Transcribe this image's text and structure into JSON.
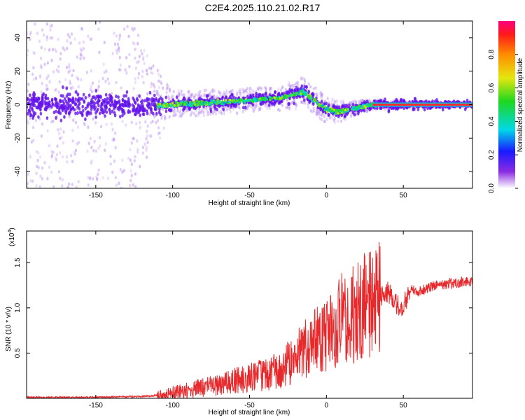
{
  "figure": {
    "title": "C2E4.2025.110.21.02.R17"
  },
  "chart_data": [
    {
      "type": "heatmap",
      "xlabel": "Height of straight line (km)",
      "ylabel": "Frequency (Hz)",
      "xlim": [
        -195,
        95
      ],
      "ylim": [
        -50,
        50
      ],
      "xticks": [
        -150,
        -100,
        -50,
        0,
        50
      ],
      "yticks": [
        -40,
        -20,
        0,
        20,
        40
      ],
      "colorbar": {
        "label": "Normalized spectral amplitude",
        "range": [
          0,
          1
        ],
        "ticks": [
          0.0,
          0.2,
          0.4,
          0.6,
          0.8
        ]
      },
      "ridge_frequency": {
        "x": [
          -195,
          -150,
          -120,
          -100,
          -80,
          -60,
          -45,
          -30,
          -20,
          -16,
          -10,
          0,
          10,
          20,
          30,
          95
        ],
        "y": [
          0,
          0,
          -1,
          0,
          1,
          2,
          3,
          4,
          6,
          8,
          4,
          -3,
          -4,
          -2,
          0,
          0
        ]
      },
      "scatter_spread_hz": {
        "x": [
          -195,
          -125,
          -115,
          -100,
          -40,
          -20,
          0,
          30,
          95
        ],
        "y": [
          50,
          50,
          30,
          8,
          7,
          9,
          8,
          3,
          1
        ]
      }
    },
    {
      "type": "line",
      "xlabel": "Height of straight line (km)",
      "ylabel": "SNR (10 * v/v)",
      "y_multiplier": "(x10",
      "y_multiplier_exp": "4",
      "xlim": [
        -195,
        95
      ],
      "ylim": [
        0,
        1.85
      ],
      "xticks": [
        -150,
        -100,
        -50,
        0,
        50
      ],
      "yticks": [
        0.5,
        1.0,
        1.5
      ],
      "series": [
        {
          "name": "SNR",
          "color": "#e8282b",
          "x": [
            -195,
            -150,
            -120,
            -105,
            -100,
            -90,
            -80,
            -70,
            -60,
            -50,
            -40,
            -30,
            -20,
            -10,
            0,
            5,
            10,
            15,
            20,
            25,
            30,
            35,
            40,
            45,
            50,
            55,
            60,
            70,
            80,
            95
          ],
          "y": [
            0.01,
            0.01,
            0.02,
            0.04,
            0.06,
            0.09,
            0.12,
            0.15,
            0.19,
            0.23,
            0.27,
            0.32,
            0.45,
            0.6,
            0.7,
            0.78,
            0.88,
            0.92,
            0.95,
            1.02,
            1.08,
            1.12,
            1.18,
            1.05,
            1.02,
            1.2,
            1.18,
            1.24,
            1.27,
            1.3
          ]
        }
      ]
    }
  ]
}
